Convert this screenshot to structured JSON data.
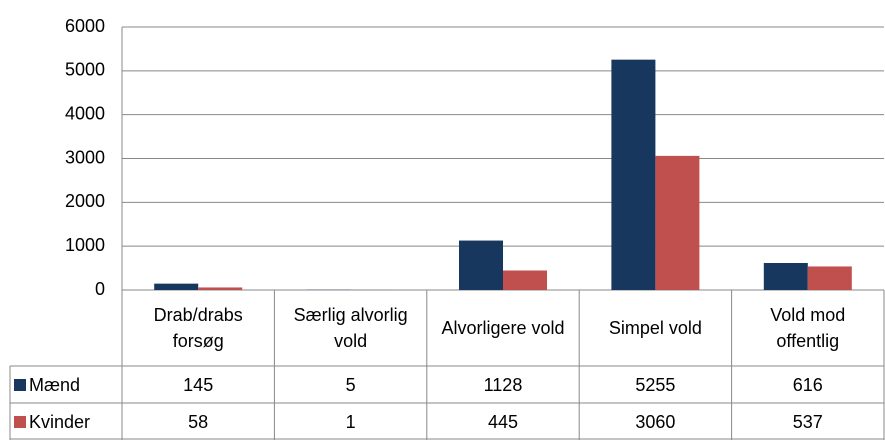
{
  "chart_data": {
    "type": "bar",
    "categories": [
      "Drab/drabs forsøg",
      "Særlig alvorlig vold",
      "Alvorligere vold",
      "Simpel vold",
      "Vold mod offentlig"
    ],
    "series": [
      {
        "name": "Mænd",
        "color": "#17375e",
        "values": [
          145,
          5,
          1128,
          5255,
          616
        ]
      },
      {
        "name": "Kvinder",
        "color": "#c0504d",
        "values": [
          58,
          1,
          445,
          3060,
          537
        ]
      }
    ],
    "ylim": [
      0,
      6000
    ],
    "yticks": [
      0,
      1000,
      2000,
      3000,
      4000,
      5000,
      6000
    ],
    "grid": true,
    "data_table": true
  }
}
